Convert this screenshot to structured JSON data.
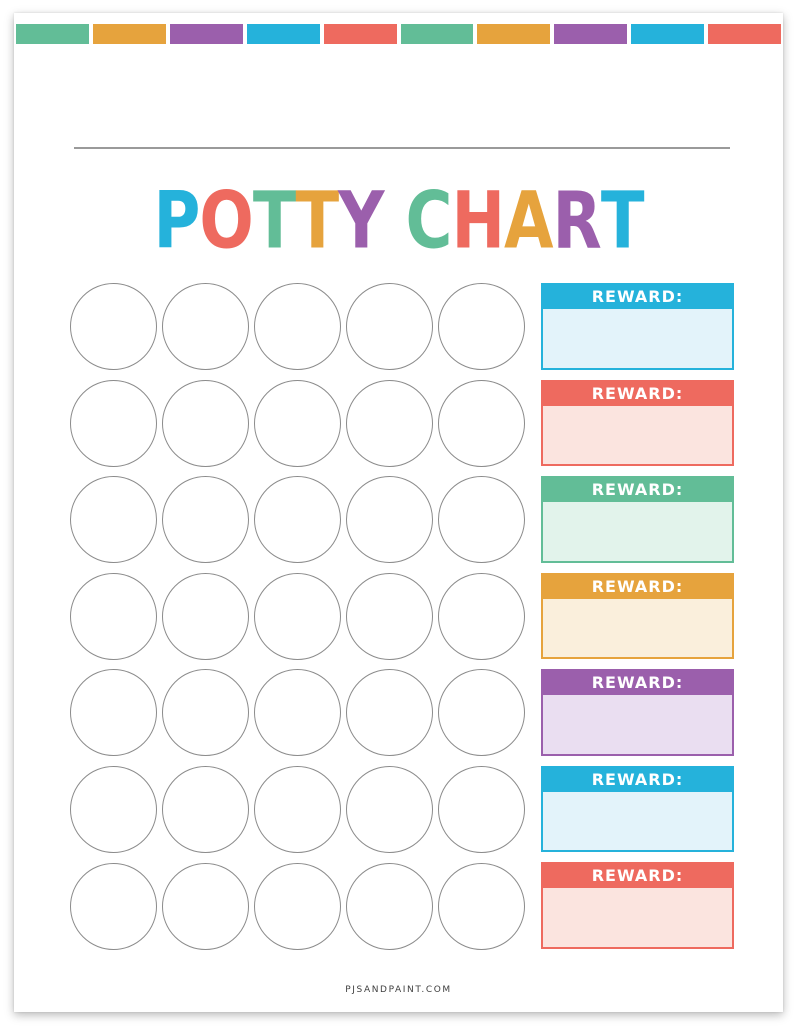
{
  "top_border": {
    "colors": [
      "#62bd97",
      "#e6a33d",
      "#9b5fac",
      "#25b2db",
      "#ee6a5f",
      "#62bd97",
      "#e6a33d",
      "#9b5fac",
      "#25b2db",
      "#ee6a5f"
    ]
  },
  "title": {
    "text": "POTTY CHART",
    "letters": [
      {
        "char": "P",
        "color": "#25b2db"
      },
      {
        "char": "O",
        "color": "#ee6a5f"
      },
      {
        "char": "T",
        "color": "#62bd97"
      },
      {
        "char": "T",
        "color": "#e6a33d"
      },
      {
        "char": "Y",
        "color": "#9b5fac"
      },
      {
        "char": " ",
        "color": ""
      },
      {
        "char": "C",
        "color": "#62bd97"
      },
      {
        "char": "H",
        "color": "#ee6a5f"
      },
      {
        "char": "A",
        "color": "#e6a33d"
      },
      {
        "char": "R",
        "color": "#9b5fac"
      },
      {
        "char": "T",
        "color": "#25b2db"
      }
    ]
  },
  "sticker_grid": {
    "rows": 7,
    "columns": 5,
    "total_circles": 35,
    "circle_border_color": "#8b8b8b"
  },
  "rewards": {
    "boxes": [
      {
        "label": "REWARD:",
        "header_color": "#25b2db",
        "body_color": "#e3f3fa"
      },
      {
        "label": "REWARD:",
        "header_color": "#ee6a5f",
        "body_color": "#fbe4df"
      },
      {
        "label": "REWARD:",
        "header_color": "#62bd97",
        "body_color": "#e2f3eb"
      },
      {
        "label": "REWARD:",
        "header_color": "#e6a33d",
        "body_color": "#faefdc"
      },
      {
        "label": "REWARD:",
        "header_color": "#9b5fac",
        "body_color": "#eadef1"
      },
      {
        "label": "REWARD:",
        "header_color": "#25b2db",
        "body_color": "#e3f3fa"
      },
      {
        "label": "REWARD:",
        "header_color": "#ee6a5f",
        "body_color": "#fbe4df"
      }
    ]
  },
  "footer": {
    "text": "PJSANDPAINT.COM"
  }
}
